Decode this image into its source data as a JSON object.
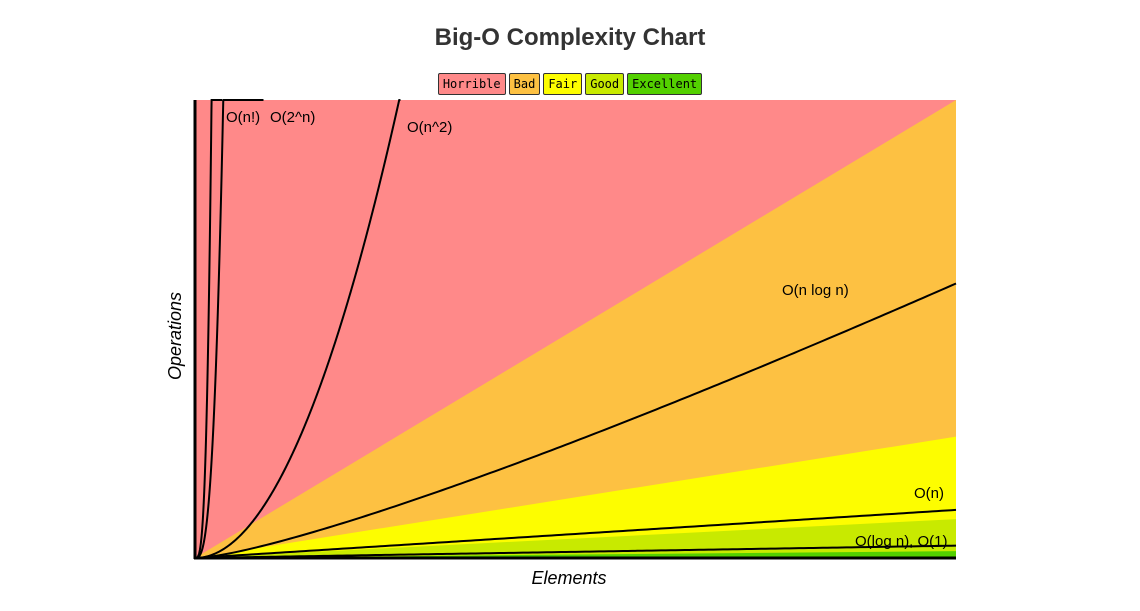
{
  "chart_data": {
    "type": "area",
    "title": "Big-O Complexity Chart",
    "xlabel": "Elements",
    "ylabel": "Operations",
    "xlim": [
      0,
      100
    ],
    "ylim": [
      0,
      100
    ],
    "grid": false,
    "legend_position": "top-center",
    "legend": [
      {
        "name": "Horrible",
        "color": "#ff8989"
      },
      {
        "name": "Bad",
        "color": "#fdc142"
      },
      {
        "name": "Fair",
        "color": "#fdfd00"
      },
      {
        "name": "Good",
        "color": "#c8ea00"
      },
      {
        "name": "Excellent",
        "color": "#53d000"
      }
    ],
    "regions": [
      {
        "name": "Horrible",
        "color": "#ff8989",
        "boundary_end_y": 100
      },
      {
        "name": "Bad",
        "color": "#fdc142",
        "boundary_end_y": 100
      },
      {
        "name": "Fair",
        "color": "#fdfd00",
        "boundary_end_y": 26.5
      },
      {
        "name": "Good",
        "color": "#c8ea00",
        "boundary_end_y": 8.5
      },
      {
        "name": "Excellent",
        "color": "#53d000",
        "boundary_end_y": 1.5
      }
    ],
    "series": [
      {
        "name": "O(n!)",
        "function": "factorial"
      },
      {
        "name": "O(2^n)",
        "function": "exponential"
      },
      {
        "name": "O(n^2)",
        "function": "quadratic"
      },
      {
        "name": "O(n log n)",
        "function": "linearithmic"
      },
      {
        "name": "O(n)",
        "function": "linear"
      },
      {
        "name": "O(log n), O(1)",
        "function": "logarithmic_constant"
      }
    ]
  }
}
